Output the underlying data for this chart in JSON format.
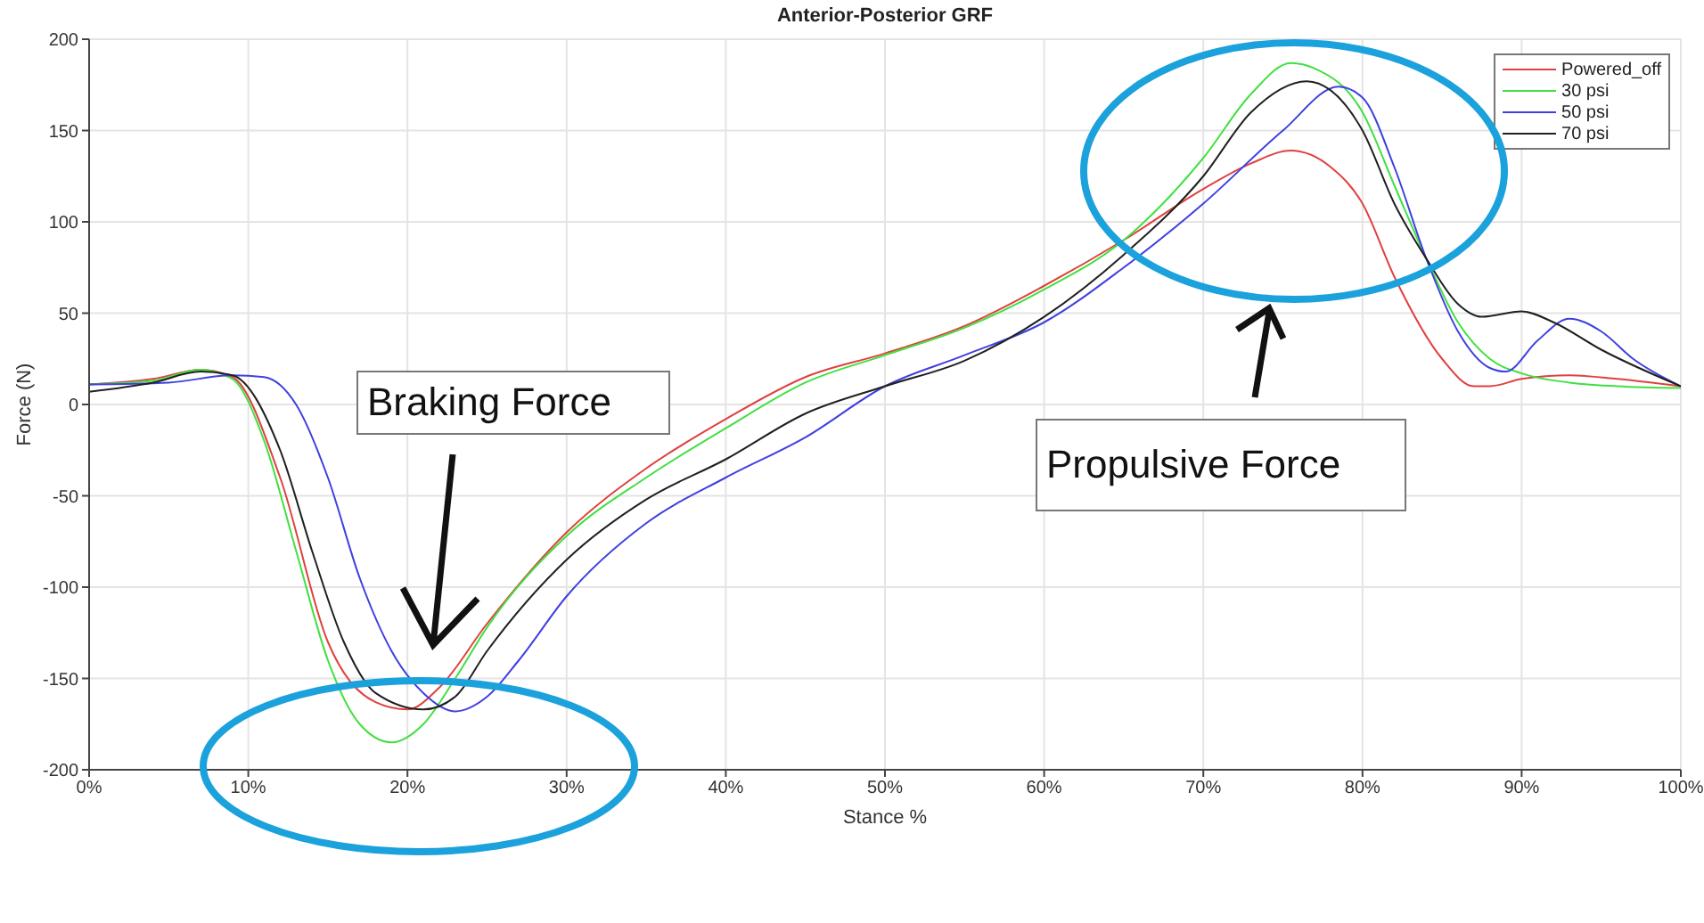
{
  "chart_data": {
    "type": "line",
    "title": "Anterior-Posterior GRF",
    "xlabel": "Stance %",
    "ylabel": "Force (N)",
    "xlim": [
      0,
      100
    ],
    "xticks": [
      {
        "value": 0,
        "label": "0%"
      },
      {
        "value": 10,
        "label": "10%"
      },
      {
        "value": 20,
        "label": "20%"
      },
      {
        "value": 30,
        "label": "30%"
      },
      {
        "value": 40,
        "label": "40%"
      },
      {
        "value": 50,
        "label": "50%"
      },
      {
        "value": 60,
        "label": "60%"
      },
      {
        "value": 70,
        "label": "70%"
      },
      {
        "value": 80,
        "label": "80%"
      },
      {
        "value": 90,
        "label": "90%"
      },
      {
        "value": 100,
        "label": "100%"
      }
    ],
    "ylim": [
      -200,
      200
    ],
    "yticks": [
      -200,
      -150,
      -100,
      -50,
      0,
      50,
      100,
      150,
      200
    ],
    "grid": true,
    "legend": "top right",
    "marker": "none",
    "line_style": "solid",
    "annotations": [
      "Braking Force",
      "Propulsive Force"
    ],
    "series": [
      {
        "name": "Powered_off",
        "color": "#e04040",
        "x": [
          0,
          4,
          7,
          9,
          12,
          15,
          18,
          20,
          22,
          25,
          30,
          35,
          40,
          45,
          50,
          55,
          60,
          65,
          70,
          73,
          75.5,
          78,
          80,
          82,
          85,
          87,
          88,
          90,
          93,
          96,
          100
        ],
        "values": [
          11,
          14,
          19,
          15,
          -40,
          -130,
          -163,
          -167,
          -155,
          -120,
          -70,
          -35,
          -8,
          15,
          28,
          43,
          65,
          90,
          118,
          132,
          139,
          130,
          110,
          70,
          25,
          10,
          10,
          14,
          16,
          14,
          10
        ]
      },
      {
        "name": "30 psi",
        "color": "#40e040",
        "x": [
          0,
          4,
          7,
          9,
          11,
          13,
          15,
          17,
          19,
          21,
          23,
          25,
          30,
          35,
          40,
          45,
          50,
          55,
          60,
          65,
          70,
          73,
          75.5,
          77,
          80,
          82,
          84,
          86,
          88,
          90,
          93,
          96,
          100
        ],
        "values": [
          11,
          13,
          19,
          14,
          -20,
          -80,
          -140,
          -175,
          -185,
          -175,
          -150,
          -122,
          -72,
          -40,
          -13,
          12,
          27,
          42,
          63,
          90,
          135,
          170,
          187,
          184,
          160,
          120,
          80,
          45,
          25,
          17,
          12,
          10,
          9
        ]
      },
      {
        "name": "50 psi",
        "color": "#4040e0",
        "x": [
          0,
          5,
          9,
          11,
          13,
          15,
          17,
          19,
          21,
          23,
          25,
          27,
          30,
          35,
          40,
          45,
          50,
          55,
          60,
          65,
          70,
          75,
          78.5,
          80,
          82,
          84,
          86,
          88,
          89,
          91,
          93,
          95,
          97,
          100
        ],
        "values": [
          11,
          12,
          16,
          15,
          0,
          -40,
          -95,
          -135,
          -158,
          -168,
          -160,
          -140,
          -105,
          -65,
          -40,
          -18,
          10,
          27,
          45,
          75,
          110,
          150,
          174,
          168,
          130,
          80,
          40,
          20,
          18,
          35,
          47,
          40,
          25,
          10
        ]
      },
      {
        "name": "70 psi",
        "color": "#202020",
        "x": [
          0,
          4,
          7,
          9,
          12,
          14,
          16,
          18,
          21,
          23,
          25,
          30,
          35,
          40,
          45,
          50,
          55,
          60,
          65,
          70,
          73,
          76.5,
          78,
          80,
          82,
          84,
          86,
          87.5,
          90,
          92,
          95,
          100
        ],
        "values": [
          7,
          12,
          18,
          16,
          -25,
          -80,
          -130,
          -158,
          -167,
          -160,
          -135,
          -85,
          -52,
          -30,
          -5,
          10,
          24,
          48,
          82,
          125,
          160,
          177,
          172,
          150,
          110,
          80,
          55,
          48,
          51,
          45,
          30,
          10
        ]
      }
    ]
  }
}
